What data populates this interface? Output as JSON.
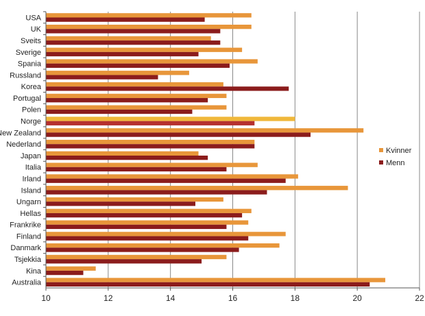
{
  "chart_data": {
    "type": "bar",
    "orientation": "horizontal",
    "title": "",
    "xlabel": "",
    "ylabel": "",
    "xlim": [
      10,
      22
    ],
    "xticks": [
      10,
      12,
      14,
      16,
      18,
      20,
      22
    ],
    "grid": "vertical",
    "legend_position": "right",
    "categories": [
      "USA",
      "UK",
      "Sveits",
      "Sverige",
      "Spania",
      "Russland",
      "Korea",
      "Portugal",
      "Polen",
      "Norge",
      "New Zealand",
      "Nederland",
      "Japan",
      "Italia",
      "Irland",
      "Island",
      "Ungarn",
      "Hellas",
      "Frankrike",
      "Finland",
      "Danmark",
      "Tsjekkia",
      "Kina",
      "Australia"
    ],
    "highlight_category": "Norge",
    "series": [
      {
        "name": "Kvinner",
        "color": "#e8963a",
        "highlight_color": "#f0b83a",
        "values": [
          16.6,
          16.6,
          15.3,
          16.3,
          16.8,
          14.6,
          15.7,
          15.8,
          15.8,
          18.0,
          20.2,
          16.7,
          14.9,
          16.8,
          18.1,
          19.7,
          15.7,
          16.6,
          16.5,
          17.7,
          17.5,
          15.8,
          11.6,
          20.9
        ]
      },
      {
        "name": "Menn",
        "color": "#8b1c1c",
        "highlight_color": "#b5302f",
        "values": [
          15.1,
          15.6,
          15.6,
          14.9,
          15.9,
          13.6,
          17.8,
          15.2,
          14.7,
          16.7,
          18.5,
          16.7,
          15.2,
          15.8,
          17.7,
          17.1,
          14.8,
          16.3,
          15.8,
          16.5,
          16.2,
          15.0,
          11.2,
          20.4
        ]
      }
    ]
  }
}
